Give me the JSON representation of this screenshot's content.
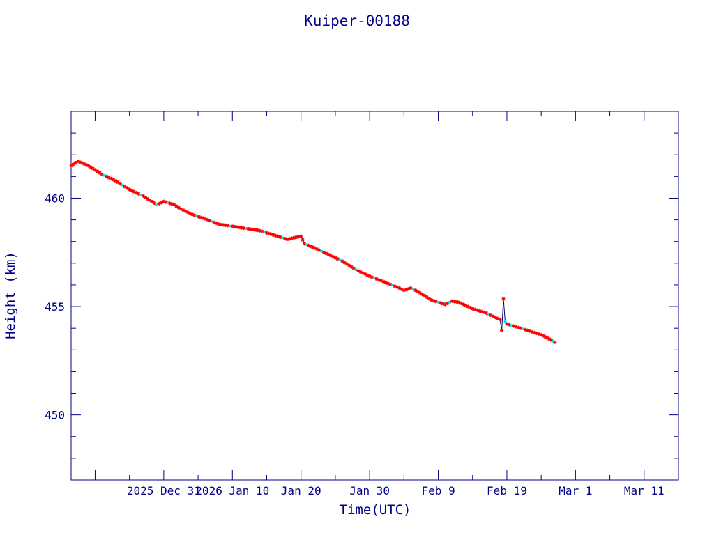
{
  "colors": {
    "axis": "#00008b",
    "text": "#00008b",
    "trace": "#000066",
    "marker_primary": "#ff0000",
    "marker_secondary": "#00e5ee",
    "background": "#ffffff"
  },
  "chart_data": {
    "type": "line",
    "title": "Kuiper-00188",
    "xlabel": "Time(UTC)",
    "ylabel": "Height (km)",
    "xlim": [
      "2025-12-17T12:00",
      "2026-03-16T00:00"
    ],
    "ylim": [
      447,
      464
    ],
    "grid": false,
    "legend": "none",
    "markers": "red asterisks with intermittent cyan dots along the trace",
    "x_tick_labels": [
      "2025 Dec 31",
      "2026 Jan 10",
      "Jan 20",
      "Jan 30",
      "Feb  9",
      "Feb 19",
      "Mar  1",
      "Mar 11"
    ],
    "x_tick_dates": [
      "2025-12-31",
      "2026-01-10",
      "2026-01-20",
      "2026-01-30",
      "2026-02-09",
      "2026-02-19",
      "2026-03-01",
      "2026-03-11"
    ],
    "y_ticks": [
      450,
      455,
      460
    ],
    "y_tick_labels": [
      "450",
      "455",
      "460"
    ],
    "series": [
      {
        "x": [
          "2025-12-17T12:00",
          "2025-12-18T12:00",
          "2025-12-20T00:00",
          "2025-12-22T00:00",
          "2025-12-24T00:00",
          "2025-12-26T00:00",
          "2025-12-28T00:00",
          "2025-12-30T00:00",
          "2025-12-31T00:00",
          "2026-01-01T12:00",
          "2026-01-02T12:00",
          "2026-01-03T12:00",
          "2026-01-04T12:00",
          "2026-01-06T00:00",
          "2026-01-08T00:00",
          "2026-01-10T00:00",
          "2026-01-12T00:00",
          "2026-01-14T00:00",
          "2026-01-16T00:00",
          "2026-01-18T00:00",
          "2026-01-20T00:00",
          "2026-01-20T12:00",
          "2026-01-22T00:00",
          "2026-01-24T00:00",
          "2026-01-26T00:00",
          "2026-01-28T00:00",
          "2026-01-30T00:00",
          "2026-02-01T00:00",
          "2026-02-03T00:00",
          "2026-02-04T00:00",
          "2026-02-05T00:00",
          "2026-02-06T00:00",
          "2026-02-07T00:00",
          "2026-02-08T00:00",
          "2026-02-09T00:00",
          "2026-02-10T00:00",
          "2026-02-11T00:00",
          "2026-02-12T00:00",
          "2026-02-14T00:00",
          "2026-02-16T00:00",
          "2026-02-18T00:00",
          "2026-02-18T06:00",
          "2026-02-18T12:00",
          "2026-02-18T18:00",
          "2026-02-19T00:00",
          "2026-02-20T00:00",
          "2026-02-22T00:00",
          "2026-02-24T00:00",
          "2026-02-25T12:00",
          "2026-02-26T00:00"
        ],
        "y": [
          461.5,
          461.7,
          461.5,
          461.1,
          460.8,
          460.4,
          460.1,
          459.7,
          459.85,
          459.7,
          459.5,
          459.35,
          459.2,
          459.05,
          458.8,
          458.7,
          458.6,
          458.5,
          458.3,
          458.1,
          458.25,
          457.9,
          457.7,
          457.4,
          457.1,
          456.7,
          456.4,
          456.15,
          455.9,
          455.75,
          455.85,
          455.7,
          455.5,
          455.3,
          455.2,
          455.1,
          455.25,
          455.2,
          454.9,
          454.7,
          454.4,
          453.9,
          455.35,
          454.3,
          454.2,
          454.1,
          453.9,
          453.7,
          453.45,
          453.35
        ]
      }
    ]
  }
}
